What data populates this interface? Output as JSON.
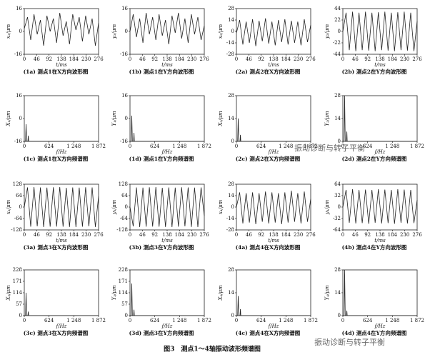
{
  "chart_data": [
    {
      "type": "line",
      "ylabel": "x₁/μm",
      "xlabel": "t/ms",
      "caption": "(1a) 测点1在X方向波形图",
      "x": [
        0,
        12,
        24,
        36,
        48,
        60,
        72,
        84,
        96,
        108,
        120,
        132,
        144,
        156,
        168,
        180,
        192,
        204,
        216,
        228,
        240,
        252,
        264,
        276
      ],
      "values": [
        2,
        10,
        -6,
        12,
        -2,
        8,
        -10,
        11,
        0,
        9,
        -8,
        13,
        -3,
        7,
        -9,
        12,
        1,
        10,
        -7,
        11,
        -2,
        9,
        -10,
        6
      ],
      "xlim": [
        0,
        276
      ],
      "xticks": [
        0,
        46,
        92,
        138,
        184,
        230,
        276
      ],
      "ylim": [
        -16,
        16
      ],
      "yticks": [
        -16,
        0,
        16
      ],
      "color": "#222"
    },
    {
      "type": "line",
      "ylabel": "y₁/μm",
      "xlabel": "t/ms",
      "caption": "(1b) 测点1在Y方向波形图",
      "x": [
        0,
        12,
        24,
        36,
        48,
        60,
        72,
        84,
        96,
        108,
        120,
        132,
        144,
        156,
        168,
        180,
        192,
        204,
        216,
        228,
        240,
        252,
        264,
        276
      ],
      "values": [
        0,
        12,
        -4,
        9,
        -8,
        13,
        -2,
        10,
        -6,
        12,
        -3,
        8,
        -9,
        11,
        -1,
        13,
        -5,
        9,
        -8,
        12,
        -2,
        10,
        -6,
        4
      ],
      "xlim": [
        0,
        276
      ],
      "xticks": [
        0,
        46,
        92,
        138,
        184,
        230,
        276
      ],
      "ylim": [
        -16,
        16
      ],
      "yticks": [
        -16,
        0,
        16
      ],
      "color": "#222"
    },
    {
      "type": "line",
      "ylabel": "x₂/μm",
      "xlabel": "t/ms",
      "caption": "(2a) 测点2在X方向波形图",
      "x": [
        0,
        12,
        24,
        36,
        48,
        60,
        72,
        84,
        96,
        108,
        120,
        132,
        144,
        156,
        168,
        180,
        192,
        204,
        216,
        228,
        240,
        252,
        264,
        276
      ],
      "values": [
        -2,
        14,
        -16,
        12,
        -14,
        15,
        -18,
        13,
        -12,
        16,
        -15,
        12,
        -17,
        14,
        -13,
        15,
        -16,
        13,
        -14,
        12,
        -17,
        15,
        -13,
        8
      ],
      "xlim": [
        0,
        276
      ],
      "xticks": [
        0,
        46,
        92,
        138,
        184,
        230,
        276
      ],
      "ylim": [
        -28,
        28
      ],
      "yticks": [
        -28,
        -14,
        0,
        14,
        28
      ],
      "color": "#222"
    },
    {
      "type": "line",
      "ylabel": "y₂/μm",
      "xlabel": "t/ms",
      "caption": "(2b) 测点2在Y方向波形图",
      "x": [
        0,
        12,
        24,
        36,
        48,
        60,
        72,
        84,
        96,
        108,
        120,
        132,
        144,
        156,
        168,
        180,
        192,
        204,
        216,
        228,
        240,
        252,
        264,
        276
      ],
      "values": [
        0,
        36,
        -36,
        38,
        -38,
        36,
        -36,
        38,
        -37,
        36,
        -38,
        37,
        -36,
        38,
        -37,
        36,
        -38,
        37,
        -36,
        38,
        -37,
        36,
        -38,
        20
      ],
      "xlim": [
        0,
        276
      ],
      "xticks": [
        0,
        46,
        92,
        138,
        184,
        230,
        276
      ],
      "ylim": [
        -44,
        44
      ],
      "yticks": [
        -44,
        -22,
        0,
        22,
        44
      ],
      "color": "#222"
    },
    {
      "type": "line",
      "ylabel": "X₁/μm",
      "xlabel": "f/Hz",
      "caption": "(1c) 测点1在X方向频谱图",
      "x": [
        0,
        30,
        45,
        60,
        90,
        100,
        110,
        1872
      ],
      "values": [
        -16,
        -16,
        -4,
        -16,
        -16,
        -12,
        -16,
        -16
      ],
      "xlim": [
        0,
        1872
      ],
      "xticks": [
        0,
        624,
        {
          "value": 1248,
          "label": "1 248"
        },
        {
          "value": 1872,
          "label": "1 872"
        }
      ],
      "ylim": [
        -16,
        16
      ],
      "yticks": [
        -16,
        0,
        16
      ],
      "color": "#222"
    },
    {
      "type": "line",
      "ylabel": "Y₁/μm",
      "xlabel": "f/Hz",
      "caption": "(1d) 测点1在Y方向频谱图",
      "x": [
        0,
        30,
        45,
        60,
        90,
        100,
        110,
        1872
      ],
      "values": [
        -16,
        -16,
        2,
        -16,
        -16,
        -10,
        -16,
        -16
      ],
      "xlim": [
        0,
        1872
      ],
      "xticks": [
        0,
        624,
        {
          "value": 1248,
          "label": "1 248"
        },
        {
          "value": 1872,
          "label": "1 872"
        }
      ],
      "ylim": [
        -16,
        16
      ],
      "yticks": [
        -16,
        0,
        16
      ],
      "color": "#222"
    },
    {
      "type": "line",
      "ylabel": "X₂/μm",
      "xlabel": "f/Hz",
      "caption": "(2c) 测点2在X方向频谱图",
      "x": [
        0,
        30,
        45,
        60,
        90,
        100,
        110,
        1872
      ],
      "values": [
        0,
        0,
        14,
        0,
        0,
        4,
        0,
        0
      ],
      "xlim": [
        0,
        1872
      ],
      "xticks": [
        0,
        624,
        {
          "value": 1248,
          "label": "1 248"
        },
        {
          "value": 1872,
          "label": "1 872"
        }
      ],
      "ylim": [
        0,
        28
      ],
      "yticks": [
        0,
        14,
        28
      ],
      "color": "#222"
    },
    {
      "type": "line",
      "ylabel": "Y₂/μm",
      "xlabel": "f/Hz",
      "caption": "(2d) 测点2在Y方向频谱图",
      "x": [
        0,
        30,
        45,
        60,
        90,
        100,
        110,
        1872
      ],
      "values": [
        0,
        0,
        28,
        0,
        0,
        6,
        0,
        0
      ],
      "xlim": [
        0,
        1872
      ],
      "xticks": [
        0,
        624,
        {
          "value": 1248,
          "label": "1 248"
        },
        {
          "value": 1872,
          "label": "1 872"
        }
      ],
      "ylim": [
        0,
        28
      ],
      "yticks": [
        0,
        14,
        28
      ],
      "color": "#222"
    },
    {
      "type": "line",
      "ylabel": "x₃/μm",
      "xlabel": "t/ms",
      "caption": "(3a) 测点3在X方向波形图",
      "x": [
        0,
        12,
        24,
        36,
        48,
        60,
        72,
        84,
        96,
        108,
        120,
        132,
        144,
        156,
        168,
        180,
        192,
        204,
        216,
        228,
        240,
        252,
        264,
        276
      ],
      "values": [
        0,
        110,
        -110,
        112,
        -108,
        110,
        -112,
        109,
        -110,
        111,
        -109,
        112,
        -110,
        108,
        -111,
        110,
        -112,
        109,
        -110,
        111,
        -108,
        110,
        -111,
        60
      ],
      "xlim": [
        0,
        276
      ],
      "xticks": [
        0,
        46,
        92,
        138,
        184,
        230,
        276
      ],
      "ylim": [
        -128,
        128
      ],
      "yticks": [
        -128,
        -64,
        0,
        64,
        128
      ],
      "color": "#222"
    },
    {
      "type": "line",
      "ylabel": "y₃/μm",
      "xlabel": "t/ms",
      "caption": "(3b) 测点3在Y方向波形图",
      "x": [
        0,
        12,
        24,
        36,
        48,
        60,
        72,
        84,
        96,
        108,
        120,
        132,
        144,
        156,
        168,
        180,
        192,
        204,
        216,
        228,
        240,
        252,
        264,
        276
      ],
      "values": [
        0,
        -108,
        110,
        -112,
        109,
        -110,
        111,
        -109,
        112,
        -110,
        108,
        -111,
        110,
        -112,
        109,
        -110,
        111,
        -108,
        110,
        -111,
        109,
        -112,
        110,
        -50
      ],
      "xlim": [
        0,
        276
      ],
      "xticks": [
        0,
        46,
        92,
        138,
        184,
        230,
        276
      ],
      "ylim": [
        -128,
        128
      ],
      "yticks": [
        -128,
        -64,
        0,
        64,
        128
      ],
      "color": "#222"
    },
    {
      "type": "line",
      "ylabel": "x₄/μm",
      "xlabel": "t/ms",
      "caption": "(4a) 测点4在X方向波形图",
      "x": [
        0,
        12,
        24,
        36,
        48,
        60,
        72,
        84,
        96,
        108,
        120,
        132,
        144,
        156,
        168,
        180,
        192,
        204,
        216,
        228,
        240,
        252,
        264,
        276
      ],
      "values": [
        0,
        18,
        -20,
        17,
        -19,
        18,
        -21,
        17,
        -18,
        19,
        -20,
        18,
        -19,
        17,
        -21,
        18,
        -19,
        20,
        -18,
        17,
        -20,
        19,
        -18,
        10
      ],
      "xlim": [
        0,
        276
      ],
      "xticks": [
        0,
        46,
        92,
        138,
        184,
        230,
        276
      ],
      "ylim": [
        -28,
        28
      ],
      "yticks": [
        -28,
        -14,
        0,
        14,
        28
      ],
      "color": "#222"
    },
    {
      "type": "line",
      "ylabel": "y₄/μm",
      "xlabel": "t/ms",
      "caption": "(4b) 测点4在Y方向波形图",
      "x": [
        0,
        12,
        24,
        36,
        48,
        60,
        72,
        84,
        96,
        108,
        120,
        132,
        144,
        156,
        168,
        180,
        192,
        204,
        216,
        228,
        240,
        252,
        264,
        276
      ],
      "values": [
        0,
        48,
        -44,
        50,
        -46,
        48,
        -45,
        49,
        -47,
        48,
        -44,
        50,
        -46,
        49,
        -45,
        48,
        -47,
        50,
        -44,
        49,
        -46,
        48,
        -45,
        20
      ],
      "xlim": [
        0,
        276
      ],
      "xticks": [
        0,
        46,
        92,
        138,
        184,
        230,
        276
      ],
      "ylim": [
        -64,
        64
      ],
      "yticks": [
        -64,
        -32,
        0,
        32,
        64
      ],
      "color": "#222"
    },
    {
      "type": "line",
      "ylabel": "X₃/μm",
      "xlabel": "f/Hz",
      "caption": "(3c) 测点3在X方向频谱图",
      "x": [
        0,
        30,
        45,
        60,
        90,
        100,
        110,
        1872
      ],
      "values": [
        0,
        0,
        114,
        0,
        0,
        20,
        0,
        0
      ],
      "xlim": [
        0,
        1872
      ],
      "xticks": [
        0,
        624,
        {
          "value": 1248,
          "label": "1 248"
        },
        {
          "value": 1872,
          "label": "1 872"
        }
      ],
      "ylim": [
        0,
        228
      ],
      "yticks": [
        0,
        57,
        114,
        171,
        228
      ],
      "color": "#222"
    },
    {
      "type": "line",
      "ylabel": "Y₃/μm",
      "xlabel": "f/Hz",
      "caption": "(3d) 测点3在Y方向频谱图",
      "x": [
        0,
        30,
        45,
        60,
        90,
        100,
        110,
        1872
      ],
      "values": [
        0,
        0,
        160,
        0,
        0,
        30,
        0,
        0
      ],
      "xlim": [
        0,
        1872
      ],
      "xticks": [
        0,
        624,
        {
          "value": 1248,
          "label": "1 248"
        },
        {
          "value": 1872,
          "label": "1 872"
        }
      ],
      "ylim": [
        0,
        228
      ],
      "yticks": [
        0,
        57,
        114,
        171,
        228
      ],
      "color": "#222"
    },
    {
      "type": "line",
      "ylabel": "X₄/μm",
      "xlabel": "f/Hz",
      "caption": "(4c) 测点4在X方向频谱图",
      "x": [
        0,
        30,
        45,
        60,
        90,
        100,
        110,
        1872
      ],
      "values": [
        0,
        0,
        12,
        0,
        0,
        4,
        0,
        0
      ],
      "xlim": [
        0,
        1872
      ],
      "xticks": [
        0,
        624,
        {
          "value": 1248,
          "label": "1 248"
        },
        {
          "value": 1872,
          "label": "1 872"
        }
      ],
      "ylim": [
        0,
        28
      ],
      "yticks": [
        0,
        14,
        28
      ],
      "color": "#222"
    },
    {
      "type": "line",
      "ylabel": "Y₄/μm",
      "xlabel": "f/Hz",
      "caption": "(4d) 测点4在Y方向频谱图",
      "x": [
        0,
        30,
        45,
        60,
        90,
        100,
        110,
        1872
      ],
      "values": [
        0,
        0,
        28,
        0,
        0,
        3,
        0,
        0
      ],
      "xlim": [
        0,
        1872
      ],
      "xticks": [
        0,
        624,
        {
          "value": 1248,
          "label": "1 248"
        },
        {
          "value": 1872,
          "label": "1 872"
        }
      ],
      "ylim": [
        0,
        28
      ],
      "yticks": [
        0,
        14,
        28
      ],
      "color": "#222"
    }
  ],
  "figure_caption": "图3　测点1～4轴振动波形频谱图",
  "watermarks": [
    "振动诊断与转子平衡",
    "振动诊断与转子平衡"
  ]
}
